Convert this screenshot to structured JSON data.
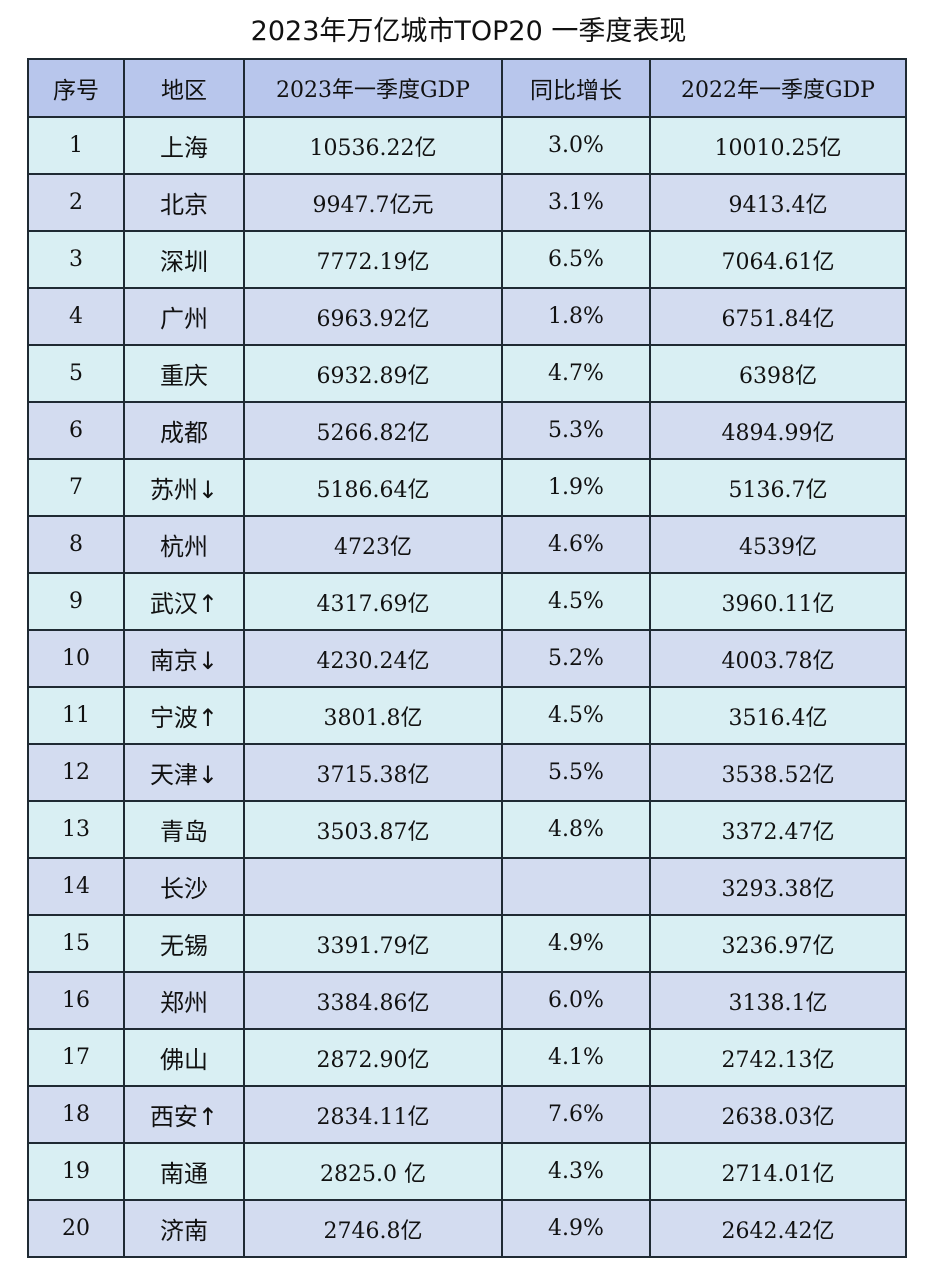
{
  "title": "2023年万亿城市TOP20 一季度表现",
  "colors": {
    "header_bg": "#b8c6ec",
    "row_odd_bg": "#d9eff3",
    "row_even_bg": "#d3dcf0",
    "border": "#1f2a33"
  },
  "table": {
    "headers": {
      "rank": "序号",
      "region": "地区",
      "gdp_2023": "2023年一季度GDP",
      "growth": "同比增长",
      "gdp_2022": "2022年一季度GDP"
    },
    "rows": [
      {
        "rank": "1",
        "city": "上海",
        "gdp_2023": "10536.22亿",
        "growth": "3.0%",
        "gdp_2022": "10010.25亿"
      },
      {
        "rank": "2",
        "city": "北京",
        "gdp_2023": "9947.7亿元",
        "growth": "3.1%",
        "gdp_2022": "9413.4亿"
      },
      {
        "rank": "3",
        "city": "深圳",
        "gdp_2023": "7772.19亿",
        "growth": "6.5%",
        "gdp_2022": "7064.61亿"
      },
      {
        "rank": "4",
        "city": "广州",
        "gdp_2023": "6963.92亿",
        "growth": "1.8%",
        "gdp_2022": "6751.84亿"
      },
      {
        "rank": "5",
        "city": "重庆",
        "gdp_2023": "6932.89亿",
        "growth": "4.7%",
        "gdp_2022": "6398亿"
      },
      {
        "rank": "6",
        "city": "成都",
        "gdp_2023": "5266.82亿",
        "growth": "5.3%",
        "gdp_2022": "4894.99亿"
      },
      {
        "rank": "7",
        "city": "苏州↓",
        "gdp_2023": "5186.64亿",
        "growth": "1.9%",
        "gdp_2022": "5136.7亿"
      },
      {
        "rank": "8",
        "city": "杭州",
        "gdp_2023": "4723亿",
        "growth": "4.6%",
        "gdp_2022": "4539亿"
      },
      {
        "rank": "9",
        "city": "武汉↑",
        "gdp_2023": "4317.69亿",
        "growth": "4.5%",
        "gdp_2022": "3960.11亿"
      },
      {
        "rank": "10",
        "city": "南京↓",
        "gdp_2023": "4230.24亿",
        "growth": "5.2%",
        "gdp_2022": "4003.78亿"
      },
      {
        "rank": "11",
        "city": "宁波↑",
        "gdp_2023": "3801.8亿",
        "growth": "4.5%",
        "gdp_2022": "3516.4亿"
      },
      {
        "rank": "12",
        "city": "天津↓",
        "gdp_2023": "3715.38亿",
        "growth": "5.5%",
        "gdp_2022": "3538.52亿"
      },
      {
        "rank": "13",
        "city": "青岛",
        "gdp_2023": "3503.87亿",
        "growth": "4.8%",
        "gdp_2022": "3372.47亿"
      },
      {
        "rank": "14",
        "city": "长沙",
        "gdp_2023": "",
        "growth": "",
        "gdp_2022": "3293.38亿"
      },
      {
        "rank": "15",
        "city": "无锡",
        "gdp_2023": "3391.79亿",
        "growth": "4.9%",
        "gdp_2022": "3236.97亿"
      },
      {
        "rank": "16",
        "city": "郑州",
        "gdp_2023": "3384.86亿",
        "growth": "6.0%",
        "gdp_2022": "3138.1亿"
      },
      {
        "rank": "17",
        "city": "佛山",
        "gdp_2023": "2872.90亿",
        "growth": "4.1%",
        "gdp_2022": "2742.13亿"
      },
      {
        "rank": "18",
        "city": "西安↑",
        "gdp_2023": "2834.11亿",
        "growth": "7.6%",
        "gdp_2022": "2638.03亿"
      },
      {
        "rank": "19",
        "city": "南通",
        "gdp_2023": "2825.0 亿",
        "growth": "4.3%",
        "gdp_2022": "2714.01亿"
      },
      {
        "rank": "20",
        "city": "济南",
        "gdp_2023": "2746.8亿",
        "growth": "4.9%",
        "gdp_2022": "2642.42亿"
      }
    ]
  }
}
